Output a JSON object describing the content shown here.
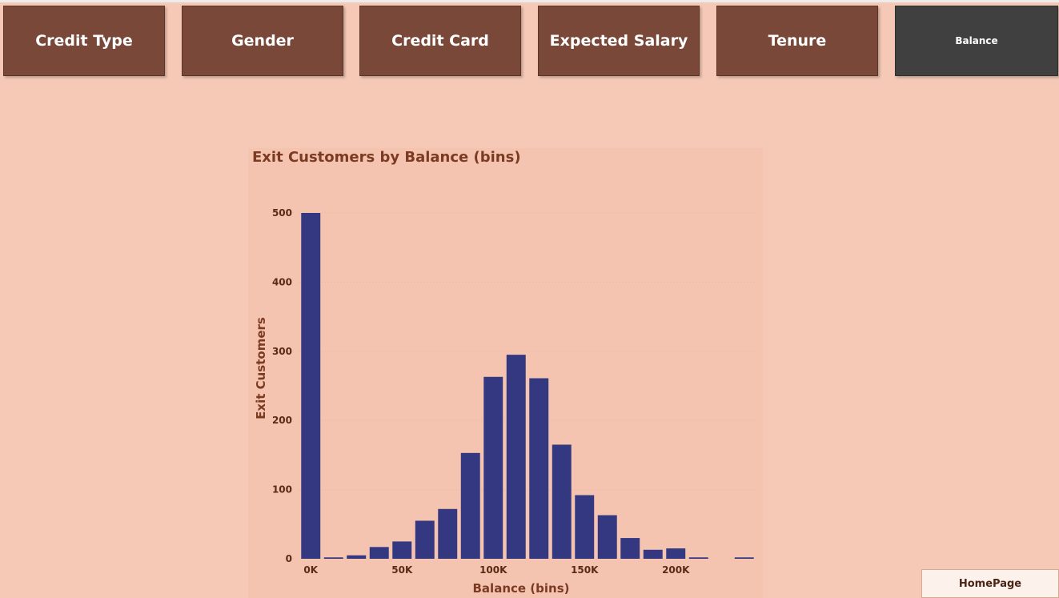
{
  "nav": {
    "buttons": [
      {
        "label": "Credit Type"
      },
      {
        "label": "Gender"
      },
      {
        "label": "Credit Card"
      },
      {
        "label": "Expected Salary"
      },
      {
        "label": "Tenure"
      },
      {
        "label": "Balance"
      }
    ],
    "active_index": 5
  },
  "colors": {
    "background": "#f6c9b7",
    "button": "#7a4838",
    "button_active": "#404040",
    "bar": "#333880",
    "title": "#7a3b22"
  },
  "homepage": {
    "label": "HomePage"
  },
  "chart_data": {
    "type": "bar",
    "title": "Exit Customers by Balance (bins)",
    "xlabel": "Balance (bins)",
    "ylabel": "Exit Customers",
    "bin_width": 12500,
    "x": [
      0,
      12500,
      25000,
      37500,
      50000,
      62500,
      75000,
      87500,
      100000,
      112500,
      125000,
      137500,
      150000,
      162500,
      175000,
      187500,
      200000,
      212500,
      225000,
      237500
    ],
    "values": [
      500,
      2,
      5,
      17,
      25,
      55,
      72,
      153,
      263,
      295,
      261,
      165,
      92,
      63,
      30,
      13,
      15,
      2,
      0,
      2
    ],
    "xlim": [
      -6250,
      243750
    ],
    "ylim": [
      0,
      500
    ],
    "x_ticks": [
      0,
      50000,
      100000,
      150000,
      200000
    ],
    "x_tick_labels": [
      "0K",
      "50K",
      "100K",
      "150K",
      "200K"
    ],
    "y_ticks": [
      0,
      100,
      200,
      300,
      400,
      500
    ],
    "y_tick_labels": [
      "0",
      "100",
      "200",
      "300",
      "400",
      "500"
    ],
    "grid": true
  }
}
